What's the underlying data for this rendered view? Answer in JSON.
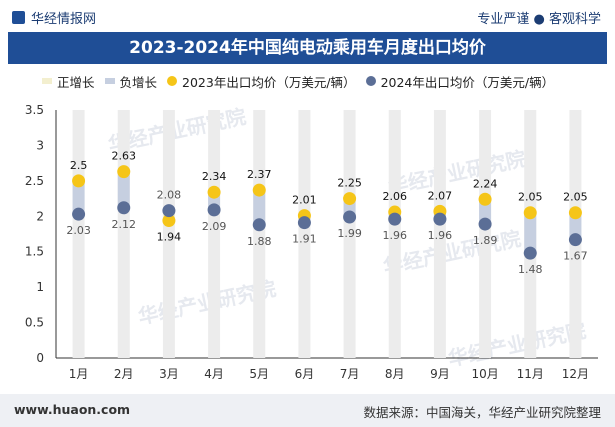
{
  "header": {
    "brand": "华经情报网",
    "tagline": "专业严谨 ● 客观科学"
  },
  "footer": {
    "website": "www.huaon.com",
    "source": "数据来源：中国海关，华经产业研究院整理"
  },
  "watermark": "华经产业研究院",
  "colors": {
    "title_bg": "#1f4e96",
    "positive": "#f3efcf",
    "negative": "#c6cfe0",
    "s2023": "#f5c518",
    "s2024": "#5b6e96",
    "bg_bar": "#ececec"
  },
  "chart_data": {
    "type": "line",
    "title": "2023-2024年中国纯电动乘用车月度出口均价",
    "categories": [
      "1月",
      "2月",
      "3月",
      "4月",
      "5月",
      "6月",
      "7月",
      "8月",
      "9月",
      "10月",
      "11月",
      "12月"
    ],
    "series": [
      {
        "name": "2023年出口均价（万美元/辆）",
        "values": [
          2.5,
          2.63,
          1.94,
          2.34,
          2.37,
          2.01,
          2.25,
          2.06,
          2.07,
          2.24,
          2.05,
          2.05
        ]
      },
      {
        "name": "2024年出口均价（万美元/辆）",
        "values": [
          2.03,
          2.12,
          2.08,
          2.09,
          1.88,
          1.91,
          1.99,
          1.96,
          1.96,
          1.89,
          1.48,
          1.67
        ]
      }
    ],
    "legend": [
      "正增长",
      "负增长",
      "2023年出口均价（万美元/辆）",
      "2024年出口均价（万美元/辆）"
    ],
    "ylim": [
      0,
      3.5
    ],
    "yticks": [
      "0",
      "0.5",
      "1",
      "1.5",
      "2",
      "2.5",
      "3",
      "3.5"
    ],
    "xlabel": "",
    "ylabel": ""
  }
}
